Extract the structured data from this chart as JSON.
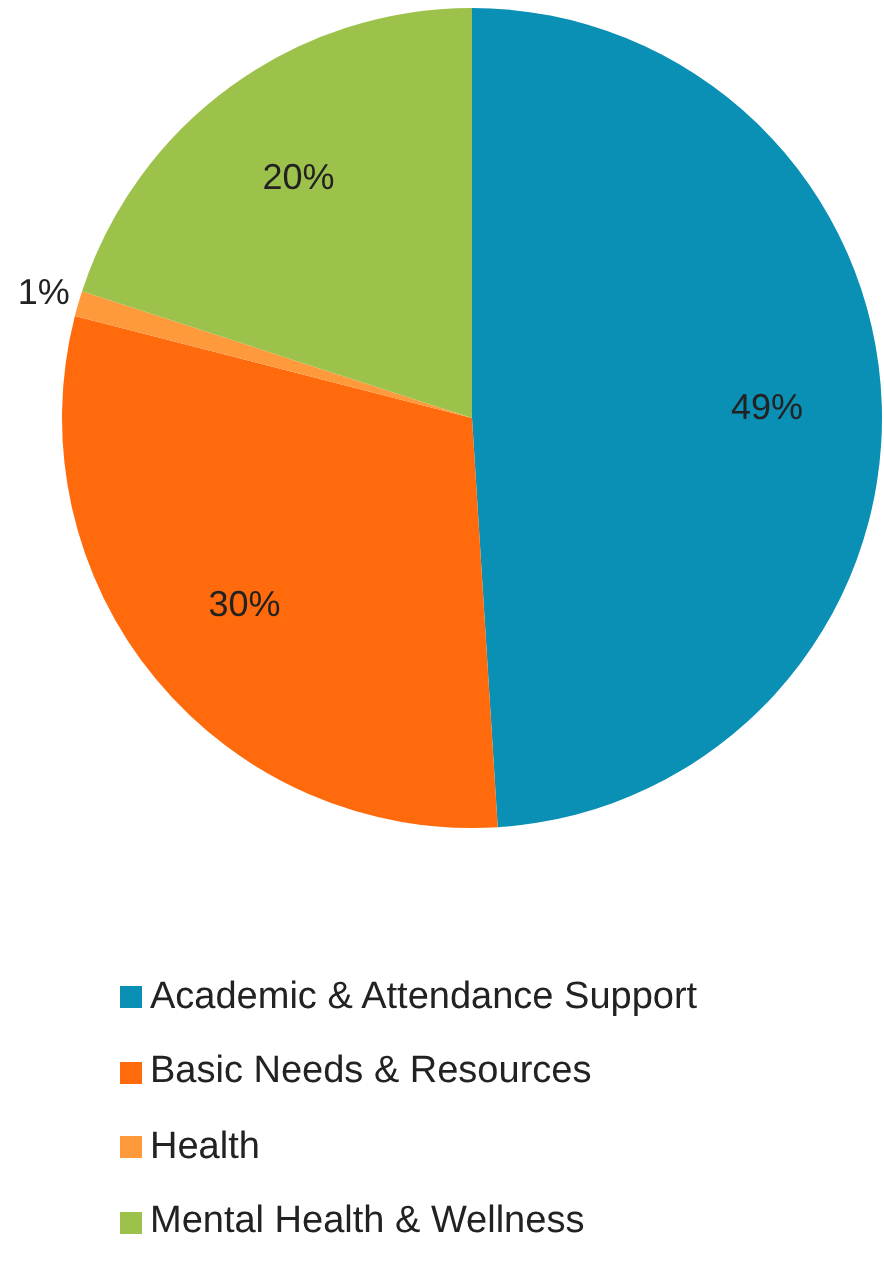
{
  "chart_data": {
    "type": "pie",
    "categories": [
      "Academic & Attendance Support",
      "Basic Needs & Resources",
      "Health",
      "Mental Health & Wellness"
    ],
    "values": [
      49,
      30,
      1,
      20
    ],
    "colors": [
      "#0a8fb5",
      "#ff6a0d",
      "#ff9a3c",
      "#9dc24c"
    ],
    "value_labels": [
      "49%",
      "30%",
      "1%",
      "20%"
    ],
    "legend": "bottom"
  }
}
